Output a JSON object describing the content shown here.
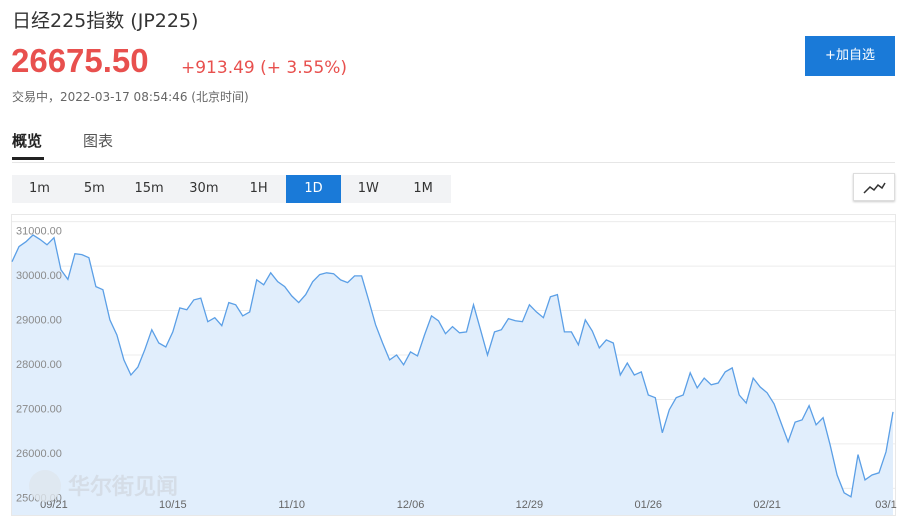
{
  "header": {
    "title": "日经225指数 (JP225)",
    "price": "26675.50",
    "change": "+913.49 (+ 3.55%)",
    "status": "交易中，2022-03-17 08:54:46 (北京时间)",
    "button": "+加自选"
  },
  "tabs": [
    "概览",
    "图表"
  ],
  "intervals": [
    "1m",
    "5m",
    "15m",
    "30m",
    "1H",
    "1D",
    "1W",
    "1M"
  ],
  "active_interval": "1D",
  "chart_data": {
    "type": "area",
    "color": "#5b9fe6",
    "fill": "#e1eefc",
    "grid": true,
    "watermark": "华尔街见闻",
    "ylim": [
      24400,
      31150
    ],
    "yticks": [
      {
        "value": 25000,
        "label": "25000.00"
      },
      {
        "value": 26000,
        "label": "26000.00"
      },
      {
        "value": 27000,
        "label": "27000.00"
      },
      {
        "value": 28000,
        "label": "28000.00"
      },
      {
        "value": 29000,
        "label": "29000.00"
      },
      {
        "value": 30000,
        "label": "30000.00"
      },
      {
        "value": 31000,
        "label": "31000.00"
      }
    ],
    "categories": [
      null,
      null,
      null,
      null,
      null,
      null,
      "09/21",
      null,
      null,
      null,
      null,
      null,
      null,
      null,
      null,
      null,
      null,
      null,
      null,
      null,
      null,
      null,
      null,
      "10/15",
      null,
      null,
      null,
      null,
      null,
      null,
      null,
      null,
      null,
      null,
      null,
      null,
      null,
      null,
      null,
      null,
      "11/10",
      null,
      null,
      null,
      null,
      null,
      null,
      null,
      null,
      null,
      null,
      null,
      null,
      null,
      null,
      null,
      null,
      "12/06",
      null,
      null,
      null,
      null,
      null,
      null,
      null,
      null,
      null,
      null,
      null,
      null,
      null,
      null,
      null,
      null,
      "12/29",
      null,
      null,
      null,
      null,
      null,
      null,
      null,
      null,
      null,
      null,
      null,
      null,
      null,
      null,
      null,
      null,
      "01/26",
      null,
      null,
      null,
      null,
      null,
      null,
      null,
      null,
      null,
      null,
      null,
      null,
      null,
      null,
      null,
      null,
      "02/21",
      null,
      null,
      null,
      null,
      null,
      null,
      null,
      null,
      null,
      null,
      null,
      null,
      null,
      null,
      null,
      null,
      "03/1",
      null
    ],
    "values": [
      30100,
      30440,
      30550,
      30700,
      30600,
      30480,
      30640,
      29920,
      29700,
      30280,
      30260,
      30190,
      29540,
      29470,
      28790,
      28450,
      27890,
      27550,
      27730,
      28120,
      28570,
      28270,
      28180,
      28520,
      29060,
      29020,
      29240,
      29280,
      28750,
      28840,
      28660,
      29180,
      29130,
      28880,
      28970,
      29690,
      29580,
      29850,
      29650,
      29540,
      29330,
      29180,
      29360,
      29650,
      29810,
      29850,
      29830,
      29690,
      29630,
      29780,
      29780,
      29240,
      28680,
      28270,
      27890,
      28000,
      27780,
      28070,
      27980,
      28450,
      28880,
      28770,
      28480,
      28640,
      28500,
      28520,
      29130,
      28570,
      28000,
      28520,
      28570,
      28820,
      28770,
      28750,
      29130,
      28970,
      28840,
      29310,
      29360,
      28520,
      28520,
      28230,
      28790,
      28540,
      28160,
      28340,
      28270,
      27550,
      27820,
      27550,
      27620,
      27100,
      27040,
      26250,
      26770,
      27040,
      27100,
      27600,
      27260,
      27480,
      27330,
      27370,
      27620,
      27710,
      27100,
      26920,
      27480,
      27280,
      27150,
      26900,
      26470,
      26050,
      26490,
      26540,
      26860,
      26430,
      26590,
      25980,
      25300,
      24900,
      24810,
      25760,
      25190,
      25300,
      25350,
      25820,
      26720
    ]
  }
}
